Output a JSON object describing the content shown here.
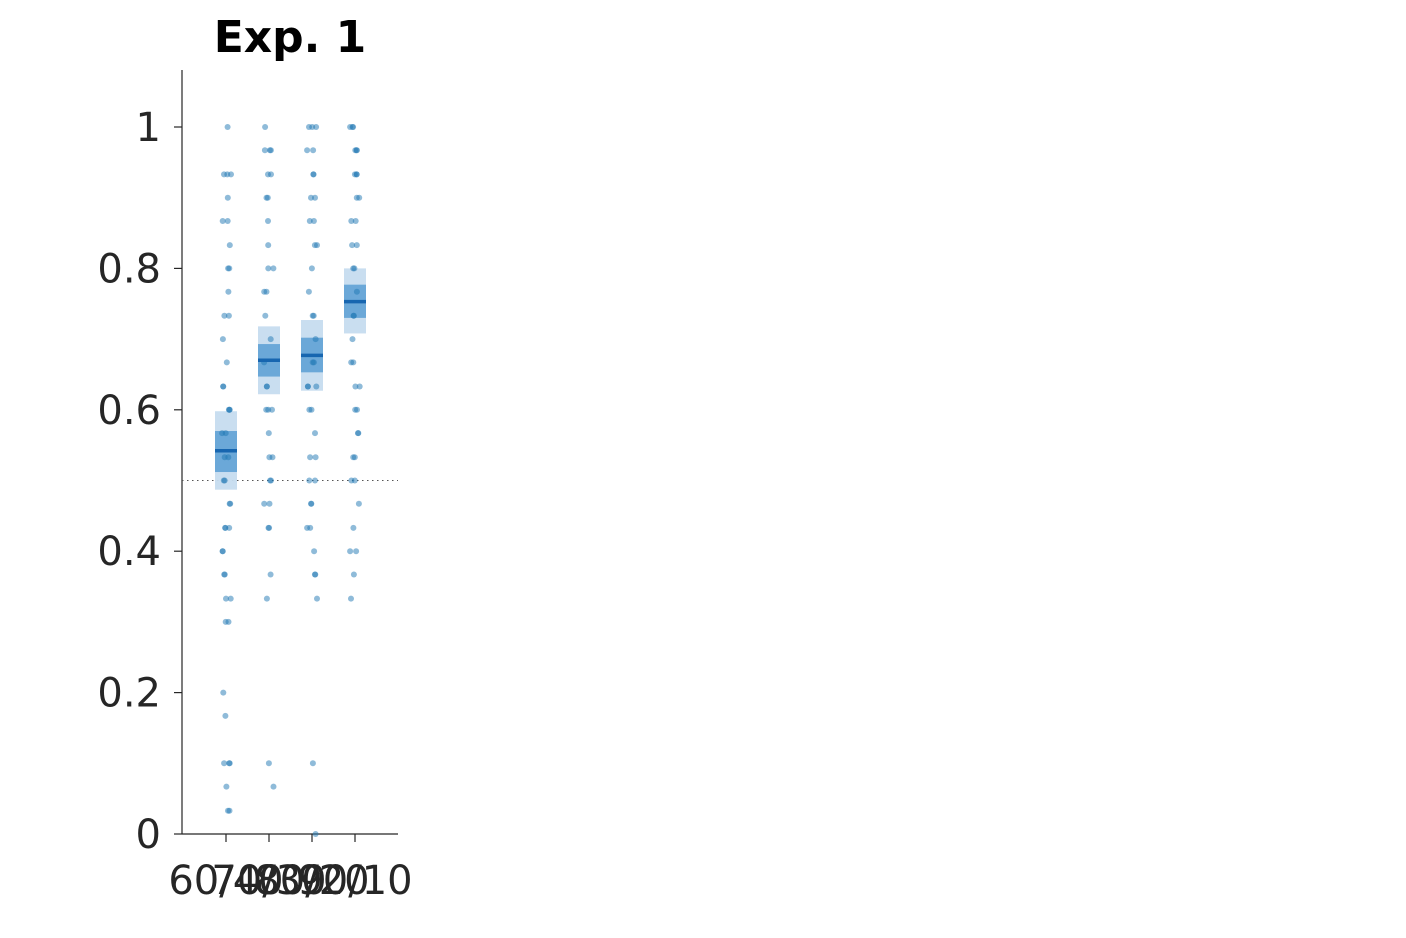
{
  "chart_data": {
    "type": "scatter",
    "title": "Exp. 1",
    "xlabel": "",
    "ylabel": "",
    "ylim": [
      0,
      1.08
    ],
    "yticks": [
      0,
      0.2,
      0.4,
      0.6,
      0.8,
      1
    ],
    "ytick_labels": [
      "0",
      "0.2",
      "0.4",
      "0.6",
      "0.8",
      "1"
    ],
    "reference_line": {
      "y": 0.5,
      "style": "dotted"
    },
    "grid": false,
    "legend": "none",
    "colors": {
      "point": "#1f77b4",
      "mean": "#1766b0",
      "band_inner": "#5a9fd4",
      "band_outer": "#c6dcef",
      "text": "#262626"
    },
    "categories": [
      "60/40",
      "70/30",
      "80/20",
      "90/10"
    ],
    "groups": [
      {
        "label": "60/40",
        "mean": 0.542,
        "inner_band": [
          0.512,
          0.57
        ],
        "outer_band": [
          0.487,
          0.598
        ],
        "points": [
          1.0,
          0.933,
          0.933,
          0.933,
          0.9,
          0.867,
          0.867,
          0.833,
          0.8,
          0.8,
          0.767,
          0.733,
          0.733,
          0.7,
          0.667,
          0.633,
          0.633,
          0.6,
          0.6,
          0.6,
          0.567,
          0.567,
          0.533,
          0.533,
          0.5,
          0.5,
          0.467,
          0.467,
          0.433,
          0.433,
          0.433,
          0.4,
          0.4,
          0.367,
          0.367,
          0.333,
          0.333,
          0.3,
          0.3,
          0.2,
          0.167,
          0.1,
          0.1,
          0.1,
          0.067,
          0.033,
          0.033
        ]
      },
      {
        "label": "70/30",
        "mean": 0.67,
        "inner_band": [
          0.647,
          0.693
        ],
        "outer_band": [
          0.622,
          0.718
        ],
        "points": [
          1.0,
          0.967,
          0.967,
          0.967,
          0.933,
          0.933,
          0.9,
          0.9,
          0.867,
          0.833,
          0.8,
          0.8,
          0.767,
          0.767,
          0.733,
          0.7,
          0.667,
          0.633,
          0.633,
          0.6,
          0.6,
          0.6,
          0.567,
          0.533,
          0.533,
          0.5,
          0.5,
          0.467,
          0.467,
          0.433,
          0.433,
          0.367,
          0.333,
          0.1,
          0.067
        ]
      },
      {
        "label": "80/20",
        "mean": 0.677,
        "inner_band": [
          0.653,
          0.702
        ],
        "outer_band": [
          0.627,
          0.727
        ],
        "points": [
          1.0,
          1.0,
          1.0,
          0.967,
          0.967,
          0.933,
          0.933,
          0.9,
          0.9,
          0.867,
          0.867,
          0.833,
          0.833,
          0.8,
          0.767,
          0.733,
          0.733,
          0.7,
          0.667,
          0.667,
          0.633,
          0.633,
          0.633,
          0.6,
          0.6,
          0.567,
          0.533,
          0.533,
          0.5,
          0.5,
          0.467,
          0.467,
          0.433,
          0.433,
          0.4,
          0.367,
          0.367,
          0.333,
          0.1,
          0.0
        ]
      },
      {
        "label": "90/10",
        "mean": 0.753,
        "inner_band": [
          0.73,
          0.777
        ],
        "outer_band": [
          0.708,
          0.8
        ],
        "points": [
          1.0,
          1.0,
          1.0,
          0.967,
          0.967,
          0.967,
          0.933,
          0.933,
          0.933,
          0.9,
          0.9,
          0.867,
          0.867,
          0.833,
          0.833,
          0.8,
          0.8,
          0.767,
          0.733,
          0.733,
          0.7,
          0.667,
          0.667,
          0.633,
          0.633,
          0.6,
          0.6,
          0.567,
          0.567,
          0.533,
          0.533,
          0.5,
          0.5,
          0.467,
          0.433,
          0.4,
          0.4,
          0.367,
          0.333
        ]
      }
    ]
  }
}
